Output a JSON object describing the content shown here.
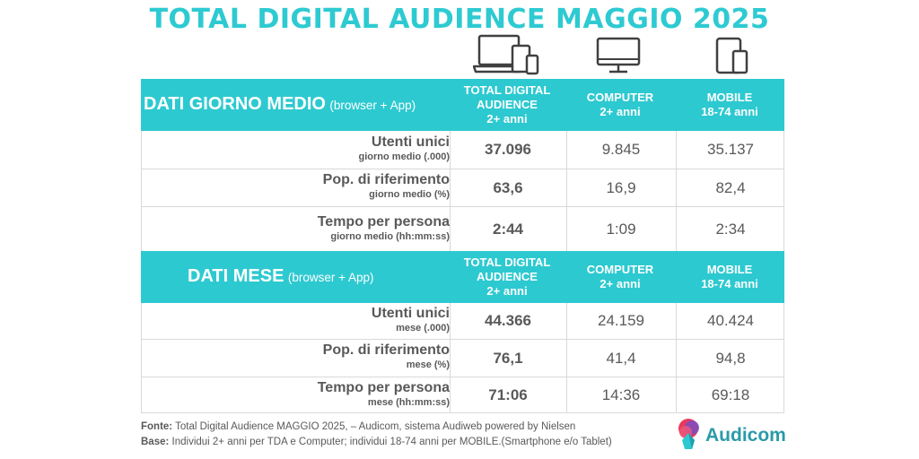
{
  "title": "TOTAL DIGITAL AUDIENCE MAGGIO 2025",
  "icons": [
    "devices-icon",
    "computer-icon",
    "mobile-icon"
  ],
  "colors": {
    "accent": "#2dc9d0",
    "title": "#2ecad2",
    "text": "#595959",
    "brand": "#2a9aa8"
  },
  "chart_data": {
    "type": "table",
    "sections": [
      {
        "title": "DATI GIORNO MEDIO",
        "title_note": "(browser + App)",
        "columns": [
          "TOTAL DIGITAL\nAUDIENCE\n2+ anni",
          "COMPUTER\n2+ anni",
          "MOBILE\n18-74 anni"
        ],
        "rows": [
          {
            "label": "Utenti unici",
            "sublabel": "giorno medio (.000)",
            "values": [
              "37.096",
              "9.845",
              "35.137"
            ]
          },
          {
            "label": "Pop. di riferimento",
            "sublabel": "giorno medio (%)",
            "values": [
              "63,6",
              "16,9",
              "82,4"
            ]
          },
          {
            "label": "Tempo per persona",
            "sublabel": "giorno medio (hh:mm:ss)",
            "values": [
              "2:44",
              "1:09",
              "2:34"
            ]
          }
        ]
      },
      {
        "title": "DATI MESE",
        "title_note": "(browser + App)",
        "columns": [
          "TOTAL DIGITAL\nAUDIENCE\n2+ anni",
          "COMPUTER\n2+ anni",
          "MOBILE\n18-74 anni"
        ],
        "rows": [
          {
            "label": "Utenti unici",
            "sublabel": "mese (.000)",
            "values": [
              "44.366",
              "24.159",
              "40.424"
            ]
          },
          {
            "label": "Pop. di riferimento",
            "sublabel": "mese (%)",
            "values": [
              "76,1",
              "41,4",
              "94,8"
            ]
          },
          {
            "label": "Tempo per persona",
            "sublabel": "mese (hh:mm:ss)",
            "values": [
              "71:06",
              "14:36",
              "69:18"
            ]
          }
        ]
      }
    ]
  },
  "footer": {
    "source_label": "Fonte:",
    "source_text": " Total Digital Audience MAGGIO 2025, – Audicom, sistema Audiweb powered by Nielsen",
    "base_label": "Base:",
    "base_text": "  Individui 2+ anni per TDA e Computer; individui 18-74 anni per MOBILE.(Smartphone e/o Tablet)"
  },
  "brand": {
    "name": "Audicom"
  }
}
